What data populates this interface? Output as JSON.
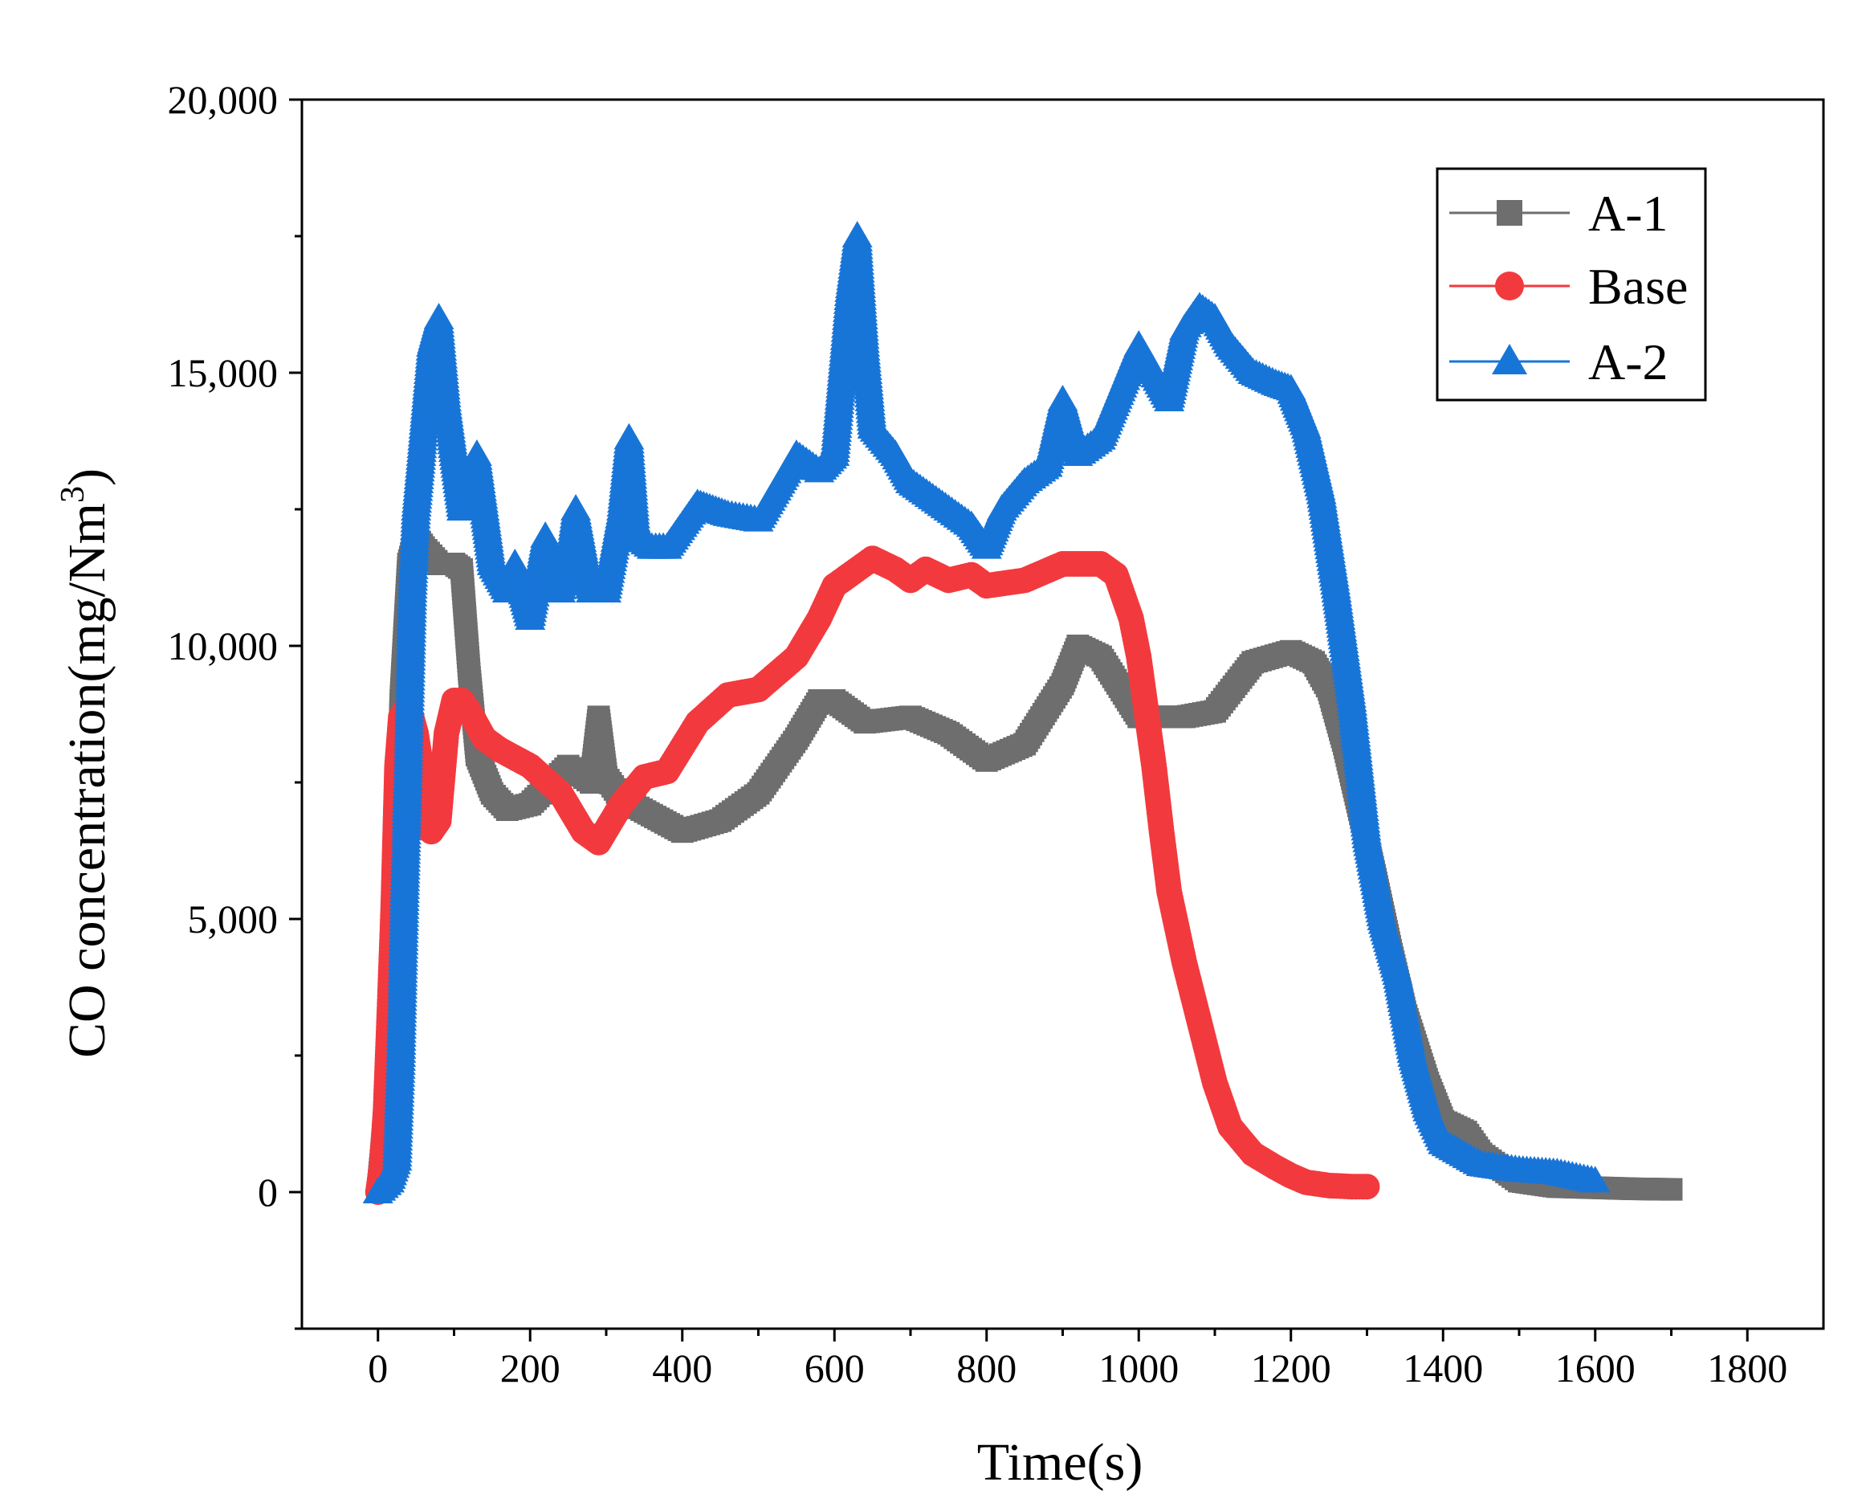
{
  "chart_data": {
    "type": "line",
    "title": "",
    "xlabel": "Time(s)",
    "ylabel_main": "CO concentration(mg/Nm",
    "ylabel_sup": "3",
    "ylabel_close": ")",
    "xlim": [
      -100,
      1900
    ],
    "ylim": [
      -2500,
      20000
    ],
    "xticks": [
      0,
      200,
      400,
      600,
      800,
      1000,
      1200,
      1400,
      1600,
      1800
    ],
    "xtick_labels": [
      "0",
      "200",
      "400",
      "600",
      "800",
      "1000",
      "1200",
      "1400",
      "1600",
      "1800"
    ],
    "yticks": [
      0,
      5000,
      10000,
      15000,
      20000
    ],
    "ytick_labels": [
      "0",
      "5,000",
      "10,000",
      "15,000",
      "20,000"
    ],
    "legend_position": "top-right",
    "series": [
      {
        "name": "A-1",
        "color": "#6e6e6e",
        "marker": "square",
        "x": [
          0,
          10,
          20,
          30,
          40,
          50,
          60,
          80,
          100,
          110,
          120,
          130,
          150,
          170,
          200,
          250,
          280,
          290,
          300,
          320,
          360,
          400,
          450,
          500,
          550,
          580,
          600,
          640,
          700,
          750,
          800,
          850,
          900,
          920,
          950,
          1000,
          1060,
          1100,
          1150,
          1200,
          1230,
          1250,
          1270,
          1290,
          1310,
          1330,
          1350,
          1380,
          1400,
          1430,
          1450,
          1500,
          1550,
          1600,
          1650,
          1700
        ],
        "y": [
          0,
          1500,
          4500,
          9000,
          11500,
          12000,
          11800,
          11500,
          11500,
          11400,
          9500,
          8000,
          7300,
          7000,
          7100,
          7800,
          7500,
          8700,
          7600,
          7200,
          6900,
          6600,
          6800,
          7300,
          8300,
          9000,
          9000,
          8600,
          8700,
          8400,
          7900,
          8200,
          9300,
          10000,
          9800,
          8700,
          8700,
          8800,
          9700,
          9900,
          9700,
          9200,
          8200,
          7000,
          5800,
          4500,
          3300,
          2000,
          1300,
          1100,
          700,
          200,
          100,
          80,
          60,
          50
        ]
      },
      {
        "name": "Base",
        "color": "#f23a3e",
        "marker": "circle",
        "x": [
          0,
          5,
          10,
          15,
          20,
          25,
          30,
          40,
          50,
          60,
          70,
          80,
          90,
          100,
          110,
          120,
          140,
          160,
          200,
          240,
          270,
          290,
          320,
          350,
          380,
          420,
          460,
          500,
          550,
          580,
          600,
          620,
          650,
          680,
          700,
          720,
          750,
          780,
          800,
          850,
          900,
          950,
          970,
          990,
          1000,
          1010,
          1020,
          1030,
          1040,
          1060,
          1080,
          1100,
          1120,
          1150,
          1180,
          1200,
          1220,
          1250,
          1280,
          1300
        ],
        "y": [
          0,
          500,
          1500,
          3300,
          5200,
          7800,
          8700,
          8900,
          8400,
          7500,
          6600,
          6800,
          8400,
          9000,
          9000,
          8800,
          8300,
          8100,
          7800,
          7300,
          6600,
          6400,
          7100,
          7600,
          7700,
          8600,
          9100,
          9200,
          9800,
          10500,
          11100,
          11300,
          11600,
          11400,
          11200,
          11400,
          11200,
          11300,
          11100,
          11200,
          11500,
          11500,
          11300,
          10500,
          9800,
          8800,
          7800,
          6600,
          5500,
          4200,
          3100,
          2000,
          1200,
          700,
          450,
          300,
          180,
          120,
          100,
          100
        ]
      },
      {
        "name": "A-2",
        "color": "#1875d8",
        "marker": "triangle",
        "x": [
          0,
          15,
          25,
          30,
          35,
          40,
          45,
          50,
          60,
          70,
          80,
          90,
          100,
          110,
          120,
          130,
          150,
          170,
          180,
          200,
          220,
          240,
          250,
          260,
          280,
          300,
          320,
          330,
          340,
          360,
          380,
          400,
          420,
          440,
          460,
          500,
          550,
          580,
          600,
          620,
          630,
          640,
          650,
          680,
          700,
          750,
          780,
          800,
          820,
          850,
          880,
          900,
          920,
          950,
          1000,
          1020,
          1040,
          1060,
          1080,
          1100,
          1120,
          1150,
          1180,
          1200,
          1220,
          1240,
          1260,
          1280,
          1300,
          1320,
          1340,
          1360,
          1380,
          1400,
          1450,
          1500,
          1550,
          1600
        ],
        "y": [
          0,
          200,
          600,
          2500,
          5500,
          8000,
          11000,
          12500,
          14000,
          15500,
          16000,
          14500,
          13500,
          12500,
          13000,
          13500,
          11500,
          11000,
          11500,
          10500,
          12000,
          11000,
          11500,
          12500,
          11000,
          11000,
          12500,
          13800,
          12000,
          11800,
          11800,
          12200,
          12600,
          12500,
          12400,
          12300,
          13500,
          13200,
          13500,
          16500,
          17500,
          15500,
          14000,
          13500,
          13000,
          12500,
          12200,
          11800,
          12500,
          13000,
          13300,
          14500,
          13500,
          13800,
          15500,
          15000,
          14500,
          15800,
          16200,
          16000,
          15500,
          15000,
          14800,
          14700,
          14000,
          12800,
          11000,
          9000,
          6500,
          5000,
          4000,
          2500,
          1500,
          900,
          500,
          400,
          350,
          200
        ]
      }
    ]
  }
}
